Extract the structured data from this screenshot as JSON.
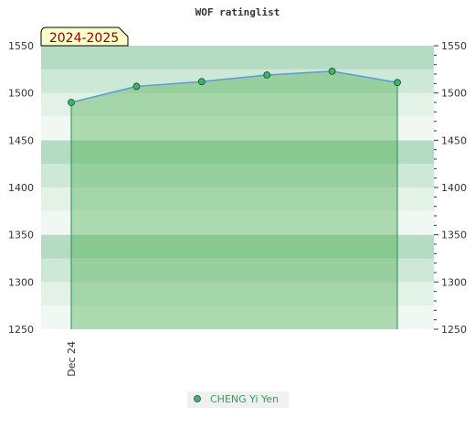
{
  "chart_data": {
    "type": "area",
    "title": "WOF ratinglist",
    "season_label": "2024-2025",
    "xlabel": "",
    "ylabel": "",
    "ylim": [
      1250,
      1550
    ],
    "y_ticks": [
      1250,
      1300,
      1350,
      1400,
      1450,
      1500,
      1550
    ],
    "x_tick_labels": [
      {
        "index": 0,
        "label": "Dec 24"
      }
    ],
    "series": [
      {
        "name": "CHENG Yi Yen",
        "values": [
          1490,
          1507,
          1512,
          1519,
          1523,
          1511
        ]
      }
    ],
    "legend_position": "bottom-center",
    "grid": false,
    "colors": {
      "area_fill": "#4caf50",
      "line": "#5b9bd5",
      "marker_fill": "#3cb371",
      "band_dark": "#b3dcc2",
      "band_mid": "#cde8d6",
      "band_light": "#e2f2e7",
      "band_lighter": "#f1f8f3"
    }
  }
}
